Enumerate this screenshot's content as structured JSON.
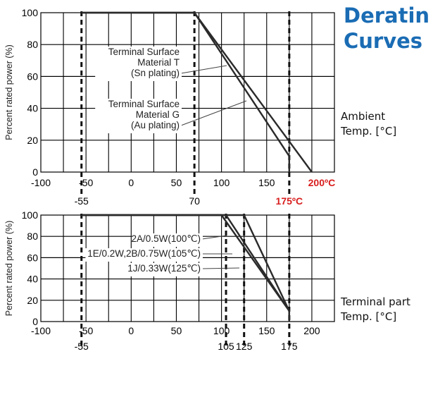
{
  "page": {
    "title_lines": [
      "Deratin",
      "Curves"
    ],
    "title_color": "#1a6cb4",
    "side_notes": [
      {
        "lines": [
          "Ambient",
          "Temp. [°C]"
        ]
      },
      {
        "lines": [
          "Terminal part",
          "Temp. [°C]"
        ]
      }
    ]
  },
  "colors": {
    "curve": "#2a2a2a",
    "grid": "#000000",
    "highlight": "#d81e1e"
  },
  "chart_data": [
    {
      "type": "line",
      "title": "",
      "xlabel": "",
      "ylabel": "Percent rated power (%)",
      "xlim": [
        -100,
        225
      ],
      "ylim": [
        0,
        100
      ],
      "grid": true,
      "x_ticks": [
        -100,
        -50,
        0,
        50,
        100,
        150
      ],
      "x_tick_labels": [
        "-100",
        "-50",
        "0",
        "50",
        "100",
        "150"
      ],
      "y_ticks": [
        0,
        20,
        40,
        60,
        80,
        100
      ],
      "y_tick_labels": [
        "0",
        "20",
        "40",
        "60",
        "80",
        "100"
      ],
      "series": [
        {
          "name": "Terminal Surface Material T (Sn plating)",
          "points": [
            [
              -55,
              100
            ],
            [
              70,
              100
            ],
            [
              175,
              10
            ],
            [
              175,
              0
            ]
          ]
        },
        {
          "name": "Terminal Surface Material G (Au plating)",
          "points": [
            [
              -55,
              100
            ],
            [
              70,
              100
            ],
            [
              200,
              0
            ]
          ]
        }
      ],
      "vlines": [
        -55,
        70,
        175
      ],
      "below_axis_labels": [
        {
          "x": -55,
          "text": "-55",
          "color": "#000000"
        },
        {
          "x": 70,
          "text": "70",
          "color": "#000000"
        },
        {
          "x": 175,
          "text": "175ºC",
          "color": "#d81e1e"
        }
      ],
      "axis_labels_highlight": [
        {
          "x": 200,
          "text": "200ºC",
          "color": "#d81e1e"
        }
      ],
      "annotations": [
        {
          "lines": [
            "Terminal Surface",
            "Material T",
            "(Sn plating)"
          ],
          "series": 0
        },
        {
          "lines": [
            "Terminal Surface",
            "Material G",
            "(Au plating)"
          ],
          "series": 1
        }
      ]
    },
    {
      "type": "line",
      "title": "",
      "xlabel": "",
      "ylabel": "Percent rated power (%)",
      "xlim": [
        -100,
        225
      ],
      "ylim": [
        0,
        100
      ],
      "grid": true,
      "x_ticks": [
        -100,
        -50,
        0,
        50,
        100,
        150,
        200
      ],
      "x_tick_labels": [
        "-100",
        "-50",
        "0",
        "50",
        "100",
        "150",
        "200"
      ],
      "y_ticks": [
        0,
        20,
        40,
        60,
        80,
        100
      ],
      "y_tick_labels": [
        "0",
        "20",
        "40",
        "60",
        "80",
        "100"
      ],
      "series": [
        {
          "name": "2A/0.5W(100℃)",
          "points": [
            [
              -55,
              100
            ],
            [
              100,
              100
            ],
            [
              175,
              10
            ],
            [
              175,
              0
            ]
          ]
        },
        {
          "name": "1E/0.2W,2B/0.75W(105℃)",
          "points": [
            [
              -55,
              100
            ],
            [
              105,
              100
            ],
            [
              175,
              10
            ],
            [
              175,
              0
            ]
          ]
        },
        {
          "name": "1J/0.33W(125℃)",
          "points": [
            [
              -55,
              100
            ],
            [
              125,
              100
            ],
            [
              175,
              10
            ],
            [
              175,
              0
            ]
          ]
        }
      ],
      "vlines": [
        -55,
        105,
        125,
        175
      ],
      "below_axis_labels": [
        {
          "x": -55,
          "text": "-55",
          "color": "#000000"
        },
        {
          "x": 105,
          "text": "105",
          "color": "#000000"
        },
        {
          "x": 125,
          "text": "125",
          "color": "#000000"
        },
        {
          "x": 175,
          "text": "175",
          "color": "#000000"
        }
      ],
      "axis_labels_highlight": [],
      "annotations": [
        {
          "lines": [
            "2A/0.5W(100℃)"
          ],
          "series": 0
        },
        {
          "lines": [
            "1E/0.2W,2B/0.75W(105℃)"
          ],
          "series": 1
        },
        {
          "lines": [
            "1J/0.33W(125℃)"
          ],
          "series": 2
        }
      ]
    }
  ]
}
